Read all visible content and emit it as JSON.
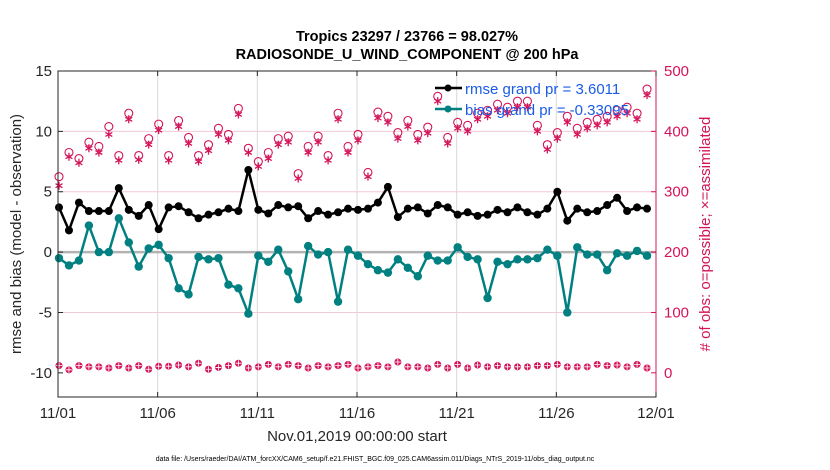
{
  "chart_data": {
    "type": "line",
    "title": "Tropics 23297 / 23766 = 98.027%",
    "subtitle": "RADIOSONDE_U_WIND_COMPONENT @ 200 hPa",
    "xlabel": "Nov.01,2019 00:00:00 start",
    "ylabel": "rmse and bias (model - observation)",
    "ylabel_right": "# of obs: o=possible; ×=assimilated",
    "xlim_days": [
      0,
      30
    ],
    "ylim": [
      -12,
      15
    ],
    "ylim_right": [
      0,
      500
    ],
    "right_axis_map": {
      "left_value_at_0": -10,
      "left_value_at_500": 15
    },
    "x_tick_labels": [
      "11/01",
      "11/06",
      "11/11",
      "11/16",
      "11/21",
      "11/26",
      "12/01"
    ],
    "x_tick_days": [
      0,
      5,
      10,
      15,
      20,
      25,
      30
    ],
    "y_ticks": [
      15,
      10,
      5,
      0,
      -5,
      -10
    ],
    "y_ticks_right": [
      500,
      400,
      300,
      200,
      100,
      0
    ],
    "grid": true,
    "legend_position": "top-right",
    "legend": [
      "rmse grand pr = 3.6011",
      "bias grand pr = -0.33095"
    ],
    "x_step_days": 0.5,
    "series": [
      {
        "name": "rmse",
        "color": "#000000",
        "values": [
          3.7,
          1.8,
          4.1,
          3.4,
          3.4,
          3.4,
          5.3,
          3.5,
          3.0,
          3.9,
          1.9,
          3.7,
          3.8,
          3.3,
          2.8,
          3.1,
          3.3,
          3.6,
          3.4,
          6.8,
          3.5,
          3.2,
          3.9,
          3.7,
          3.8,
          2.8,
          3.4,
          3.1,
          3.3,
          3.6,
          3.5,
          3.6,
          4.1,
          5.4,
          2.9,
          3.6,
          3.7,
          3.2,
          3.9,
          3.7,
          3.1,
          3.3,
          3.0,
          3.1,
          3.5,
          3.3,
          3.7,
          3.3,
          3.1,
          3.6,
          5.0,
          2.6,
          3.6,
          3.3,
          3.4,
          3.9,
          4.5,
          3.4,
          3.7,
          3.6
        ]
      },
      {
        "name": "bias",
        "color": "#008080",
        "values": [
          -0.5,
          -1.1,
          -0.7,
          2.2,
          0.0,
          0.0,
          2.8,
          0.8,
          -1.2,
          0.3,
          0.6,
          -0.5,
          -3.0,
          -3.5,
          -0.4,
          -0.6,
          -0.5,
          -2.7,
          -3.0,
          -5.1,
          -0.3,
          -0.8,
          0.2,
          -1.6,
          -3.9,
          0.5,
          -0.2,
          0.0,
          -4.1,
          0.2,
          -0.3,
          -1.0,
          -1.5,
          -1.7,
          -0.6,
          -1.3,
          -2.0,
          -0.3,
          -0.7,
          -0.7,
          0.4,
          -0.4,
          -0.6,
          -3.8,
          -0.8,
          -1.0,
          -0.6,
          -0.6,
          -0.5,
          0.2,
          -0.3,
          -5.0,
          0.4,
          -0.2,
          -0.2,
          -1.5,
          -0.1,
          -0.3,
          0.1,
          -0.3
        ]
      },
      {
        "name": "obs_possible",
        "color": "#d4145a",
        "marker": "o",
        "values": [
          325,
          365,
          355,
          382,
          375,
          408,
          360,
          430,
          360,
          388,
          412,
          360,
          418,
          390,
          360,
          378,
          405,
          395,
          438,
          372,
          350,
          365,
          388,
          392,
          330,
          375,
          392,
          360,
          430,
          375,
          395,
          332,
          432,
          425,
          398,
          418,
          395,
          407,
          458,
          390,
          415,
          410,
          430,
          435,
          445,
          440,
          450,
          450,
          410,
          378,
          398,
          425,
          405,
          415,
          420,
          425,
          435,
          440,
          430,
          470
        ]
      },
      {
        "name": "obs_assimilated",
        "color": "#d4145a",
        "marker": "*",
        "values": [
          310,
          358,
          348,
          372,
          365,
          395,
          352,
          420,
          353,
          378,
          402,
          352,
          408,
          380,
          350,
          368,
          395,
          385,
          428,
          365,
          342,
          355,
          378,
          382,
          322,
          365,
          382,
          352,
          420,
          365,
          385,
          325,
          422,
          415,
          388,
          408,
          385,
          397,
          450,
          380,
          405,
          400,
          420,
          425,
          435,
          430,
          440,
          440,
          400,
          370,
          388,
          415,
          395,
          405,
          410,
          415,
          425,
          430,
          420,
          460
        ]
      },
      {
        "name": "obs_bottom_possible",
        "color": "#d4145a",
        "values": [
          12,
          5,
          12,
          10,
          10,
          8,
          12,
          8,
          12,
          6,
          11,
          11,
          13,
          10,
          16,
          6,
          9,
          12,
          16,
          8,
          10,
          14,
          10,
          14,
          12,
          8,
          12,
          10,
          12,
          14,
          8,
          10,
          12,
          10,
          18,
          10,
          10,
          8,
          14,
          8,
          14,
          8,
          13,
          10,
          12,
          10,
          10,
          10,
          12,
          12,
          14,
          10,
          10,
          10,
          14,
          12,
          13,
          10,
          14,
          8
        ]
      }
    ]
  },
  "footer": "data file: /Users/raeder/DAI/ATM_forcXX/CAM6_setup/f.e21.FHIST_BGC.f09_025.CAM6assim.011/Diags_NTrS_2019-11/obs_diag_output.nc"
}
